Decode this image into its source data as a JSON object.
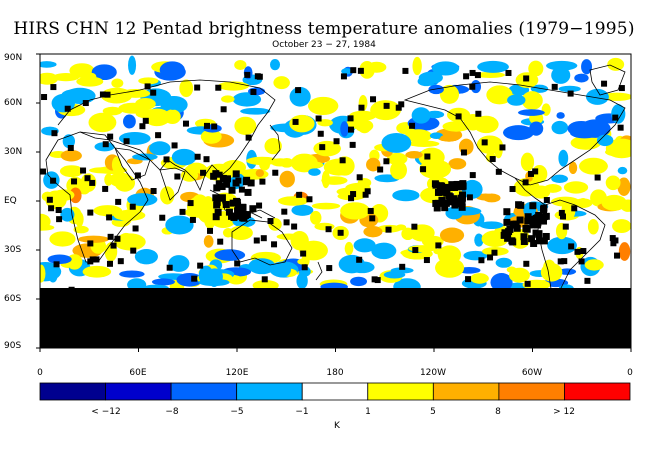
{
  "title": "HIRS CHN 12 Pentad brightness temperature anomalies (1979−1995)",
  "subtitle": "October 23 − 27, 1984",
  "y_ticks": [
    "90N",
    "60N",
    "30N",
    "EQ",
    "30S",
    "60S",
    "90S"
  ],
  "x_ticks": [
    "0",
    "60E",
    "120E",
    "180",
    "120W",
    "60W",
    "0"
  ],
  "colorbar": {
    "unit": "K",
    "labels": [
      "< −12",
      "−8",
      "−5",
      "−1",
      "1",
      "5",
      "8",
      "> 12"
    ],
    "colors": [
      "#00008f",
      "#0000cc",
      "#0066ff",
      "#00b0ff",
      "#ffffff",
      "#ffff00",
      "#ffb000",
      "#ff7f00",
      "#ff0000"
    ]
  },
  "legend_colors": {
    "missing": "#000000",
    "coast": "#000000"
  }
}
